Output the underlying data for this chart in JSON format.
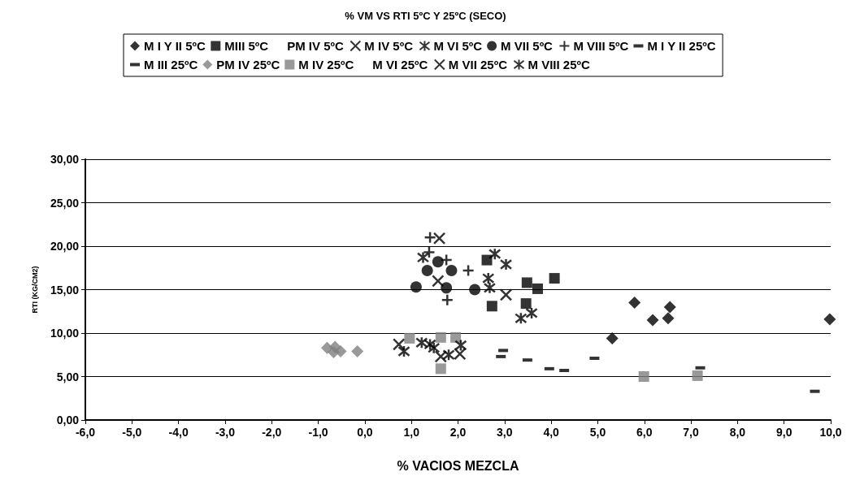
{
  "chart_data": {
    "type": "scatter",
    "title": "% VM VS RTI 5ºC Y 25ºC (SECO)",
    "xlabel": "% VACIOS MEZCLA",
    "ylabel": "RTI (KG/CM2)",
    "xlim": [
      -6,
      10
    ],
    "ylim": [
      0,
      30
    ],
    "xticks": [
      {
        "value": -6,
        "label": "-6,0"
      },
      {
        "value": -5,
        "label": "-5,0"
      },
      {
        "value": -4,
        "label": "-4,0"
      },
      {
        "value": -3,
        "label": "-3,0"
      },
      {
        "value": -2,
        "label": "-2,0"
      },
      {
        "value": -1,
        "label": "-1,0"
      },
      {
        "value": 0,
        "label": "0,0"
      },
      {
        "value": 1,
        "label": "1,0"
      },
      {
        "value": 2,
        "label": "2,0"
      },
      {
        "value": 3,
        "label": "3,0"
      },
      {
        "value": 4,
        "label": "4,0"
      },
      {
        "value": 5,
        "label": "5,0"
      },
      {
        "value": 6,
        "label": "6,0"
      },
      {
        "value": 7,
        "label": "7,0"
      },
      {
        "value": 8,
        "label": "8,0"
      },
      {
        "value": 9,
        "label": "9,0"
      },
      {
        "value": 10,
        "label": "10,0"
      }
    ],
    "yticks": [
      {
        "value": 0,
        "label": "0,00"
      },
      {
        "value": 5,
        "label": "5,00"
      },
      {
        "value": 10,
        "label": "10,00"
      },
      {
        "value": 15,
        "label": "15,00"
      },
      {
        "value": 20,
        "label": "20,00"
      },
      {
        "value": 25,
        "label": "25,00"
      },
      {
        "value": 30,
        "label": "30,00"
      }
    ],
    "grid": "y",
    "legend": "top",
    "series": [
      {
        "name": "M I Y II 5ºC",
        "color": "#000000",
        "marker": "diamond",
        "x": [
          5.31,
          5.79,
          6.18,
          6.51,
          6.55,
          9.98
        ],
        "values": [
          9.4,
          13.5,
          11.5,
          11.7,
          13.0,
          11.6
        ]
      },
      {
        "name": "MIII 5ºC",
        "color": "#000000",
        "marker": "square",
        "x": [
          2.62,
          2.73,
          3.48,
          3.71,
          3.46,
          4.07
        ],
        "values": [
          18.4,
          13.1,
          15.8,
          15.1,
          13.4,
          16.3
        ]
      },
      {
        "name": "PM IV 5ºC",
        "color": "#000000",
        "marker": "none"
      },
      {
        "name": "M IV 5ºC",
        "color": "#000000",
        "marker": "x",
        "x": [
          1.6,
          1.57,
          3.03
        ],
        "values": [
          20.9,
          16.0,
          14.4
        ]
      },
      {
        "name": "M VI 5ºC",
        "color": "#000000",
        "marker": "cross",
        "x": [
          1.25,
          2.79,
          3.03,
          2.65,
          2.68,
          3.35,
          3.58
        ],
        "values": [
          18.7,
          19.1,
          17.9,
          16.3,
          15.2,
          11.7,
          12.3
        ]
      },
      {
        "name": "M VII 5ºC",
        "color": "#000000",
        "marker": "circle",
        "x": [
          1.34,
          1.57,
          1.86,
          1.1,
          1.75,
          2.36
        ],
        "values": [
          17.2,
          18.2,
          17.2,
          15.3,
          15.2,
          15.0
        ]
      },
      {
        "name": "M VIII 5ºC",
        "color": "#000000",
        "marker": "plus",
        "x": [
          1.4,
          1.38,
          1.77,
          2.22,
          1.75
        ],
        "values": [
          21.0,
          19.3,
          13.8,
          17.2,
          18.4
        ]
      },
      {
        "name": "M I Y II 25ºC",
        "color": "#000000",
        "x": [
          2.97,
          2.92,
          3.49,
          7.2,
          9.66
        ],
        "values": [
          8.0,
          7.3,
          6.9,
          6.0,
          3.3
        ]
      },
      {
        "name": "M III 25ºC",
        "color": "#000000",
        "x": [
          3.96,
          4.28,
          4.93
        ],
        "values": [
          5.9,
          5.7,
          7.1
        ]
      },
      {
        "name": "PM IV 25ºC",
        "color": "#808080",
        "marker": "diamond",
        "x": [
          -0.81,
          -0.64,
          -0.52,
          -0.67,
          -0.16
        ],
        "values": [
          8.3,
          8.4,
          7.9,
          7.8,
          7.9
        ]
      },
      {
        "name": "M IV 25ºC",
        "color": "#808080",
        "marker": "square",
        "x": [
          0.96,
          1.95,
          1.63,
          1.63,
          5.99,
          7.14
        ],
        "values": [
          9.4,
          9.5,
          9.5,
          5.9,
          5.0,
          5.1
        ]
      },
      {
        "name": "M VI 25ºC",
        "color": "#000000",
        "marker": "none"
      },
      {
        "name": "M VII 25ºC",
        "color": "#000000",
        "marker": "x",
        "x": [
          0.73,
          1.63,
          2.04
        ],
        "values": [
          8.7,
          7.3,
          7.6
        ]
      },
      {
        "name": "M VIII 25ºC",
        "color": "#000000",
        "marker": "cross",
        "x": [
          0.84,
          1.22,
          1.4,
          1.48,
          1.8,
          2.06
        ],
        "values": [
          7.9,
          8.9,
          8.7,
          8.3,
          7.5,
          8.6
        ]
      }
    ]
  }
}
